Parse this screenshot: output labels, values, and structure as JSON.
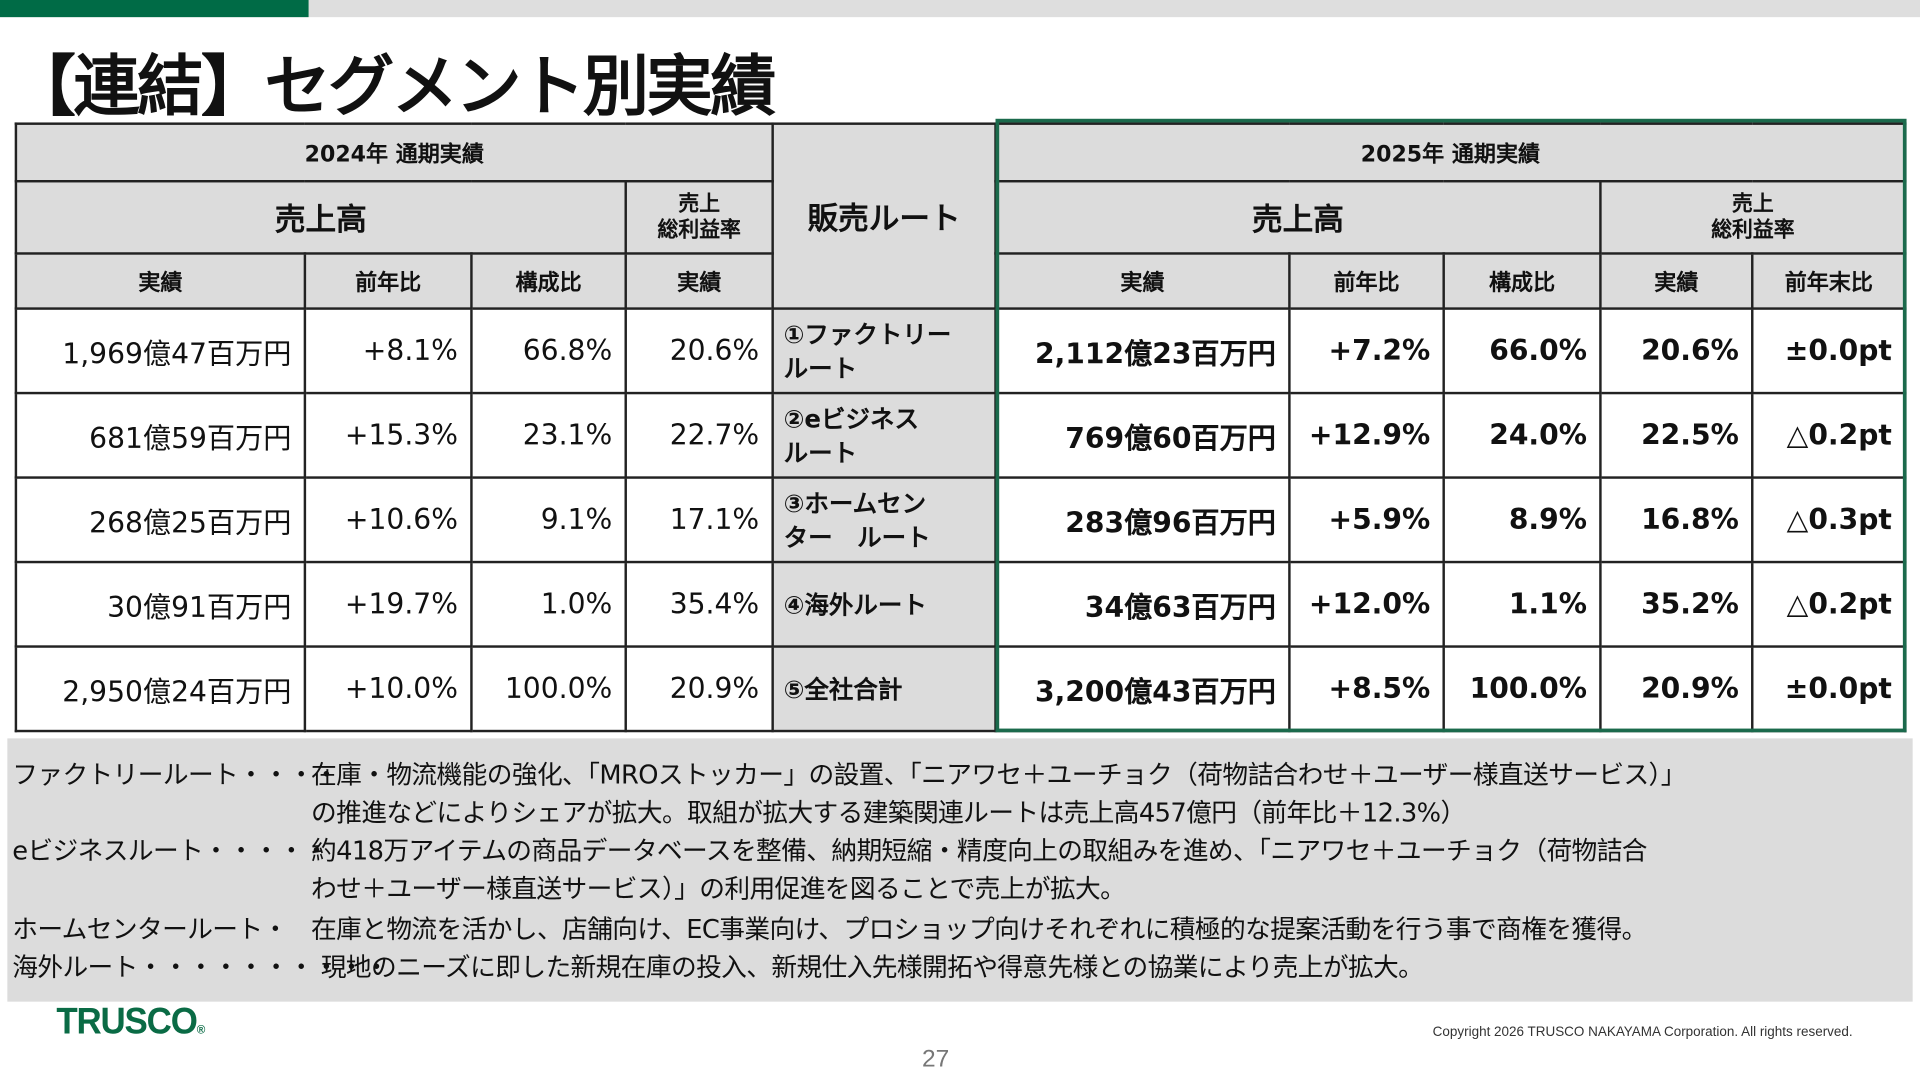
{
  "title": "【連結】セグメント別実績",
  "colors": {
    "brand_green": "#006b46",
    "header_gray": "#dcdcdc",
    "highlight_border": "#1b6a4c"
  },
  "table": {
    "y2024_header": "2024年 通期実績",
    "y2025_header": "2025年 通期実績",
    "sales_header": "売上高",
    "margin_header_line1": "売上",
    "margin_header_line2": "総利益率",
    "route_header": "販売ルート",
    "col_actual": "実績",
    "col_yoy": "前年比",
    "col_share": "構成比",
    "col_margin_actual": "実績",
    "col_margin_change": "前年末比",
    "rows": [
      {
        "route_line1": "①ファクトリー",
        "route_line2": "ルート",
        "s24": "1,969億47百万円",
        "yoy24": "+8.1%",
        "share24": "66.8%",
        "gm24": "20.6%",
        "s25": "2,112億23百万円",
        "yoy25": "+7.2%",
        "share25": "66.0%",
        "gm25": "20.6%",
        "gmchg": "±0.0pt"
      },
      {
        "route_line1": "②eビジネス",
        "route_line2": "ルート",
        "s24": "681億59百万円",
        "yoy24": "+15.3%",
        "share24": "23.1%",
        "gm24": "22.7%",
        "s25": "769億60百万円",
        "yoy25": "+12.9%",
        "share25": "24.0%",
        "gm25": "22.5%",
        "gmchg": "△0.2pt"
      },
      {
        "route_line1": "③ホームセン",
        "route_line2": "ター　ルート",
        "s24": "268億25百万円",
        "yoy24": "+10.6%",
        "share24": "9.1%",
        "gm24": "17.1%",
        "s25": "283億96百万円",
        "yoy25": "+5.9%",
        "share25": "8.9%",
        "gm25": "16.8%",
        "gmchg": "△0.3pt"
      },
      {
        "route_line1": "④海外ルート",
        "route_line2": "",
        "s24": "30億91百万円",
        "yoy24": "+19.7%",
        "share24": "1.0%",
        "gm24": "35.4%",
        "s25": "34億63百万円",
        "yoy25": "+12.0%",
        "share25": "1.1%",
        "gm25": "35.2%",
        "gmchg": "△0.2pt"
      },
      {
        "route_line1": "⑤全社合計",
        "route_line2": "",
        "s24": "2,950億24百万円",
        "yoy24": "+10.0%",
        "share24": "100.0%",
        "gm24": "20.9%",
        "s25": "3,200億43百万円",
        "yoy25": "+8.5%",
        "share25": "100.0%",
        "gm25": "20.9%",
        "gmchg": "±0.0pt"
      }
    ]
  },
  "notes": [
    {
      "label": "ファクトリールート・・・・",
      "text": "在庫・物流機能の強化、「MROストッカー」の設置、「ニアワセ＋ユーチョク（荷物詰合わせ＋ユーザー様直送サービス）」"
    },
    {
      "label": "",
      "text": "の推進などによりシェアが拡大。取組が拡大する建築関連ルートは売上高457億円（前年比＋12.3%）"
    },
    {
      "label": "eビジネスルート・・・・・",
      "text": "約418万アイテムの商品データベースを整備、納期短縮・精度向上の取組みを進め、「ニアワセ＋ユーチョク（荷物詰合"
    },
    {
      "label": "",
      "text": "わせ＋ユーザー様直送サービス）」の利用促進を図ることで売上が拡大。"
    },
    {
      "label": "ホームセンタールート・",
      "text": "在庫と物流を活かし、店舗向け、EC事業向け、プロショップ向けそれぞれに積極的な提案活動を行う事で商権を獲得。"
    },
    {
      "label": "海外ルート・・・・・・・・・・",
      "text": "現地のニーズに即した新規在庫の投入、新規仕入先様開拓や得意先様との協業により売上が拡大。"
    }
  ],
  "footer": {
    "logo": "TRUSCO",
    "copyright": "Copyright 2026 TRUSCO NAKAYAMA Corporation. All rights reserved.",
    "page_number": "27"
  }
}
